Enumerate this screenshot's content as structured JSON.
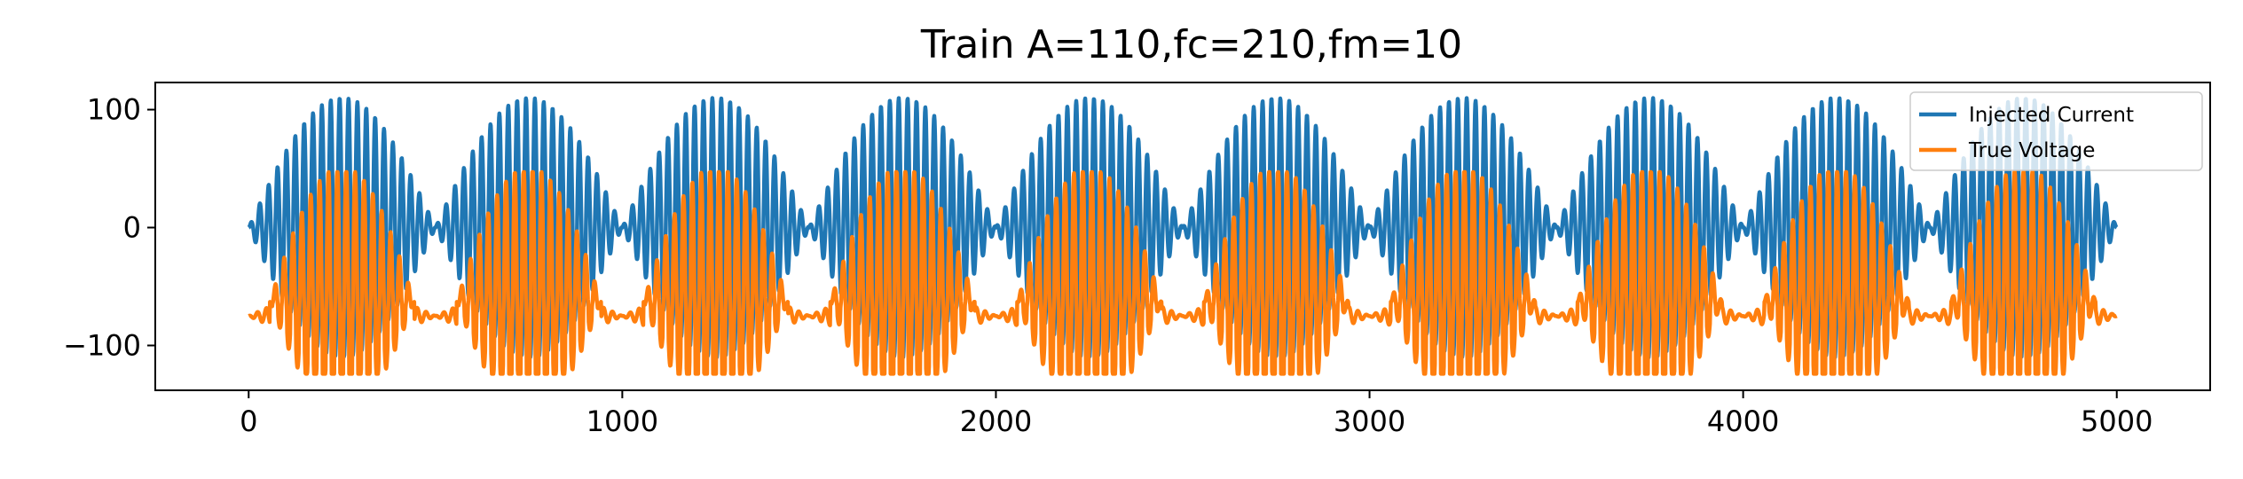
{
  "chart_data": {
    "type": "line",
    "title": "Train A=110,fc=210,fm=10",
    "xlabel": "",
    "ylabel": "",
    "xlim": [
      -250,
      5250
    ],
    "ylim": [
      -138,
      123
    ],
    "xticks": [
      0,
      1000,
      2000,
      3000,
      4000,
      5000
    ],
    "xtick_labels": [
      "0",
      "1000",
      "2000",
      "3000",
      "4000",
      "5000"
    ],
    "yticks": [
      -100,
      0,
      100
    ],
    "ytick_labels": [
      "−100",
      "0",
      "100"
    ],
    "grid": false,
    "legend_position": "upper right",
    "series": [
      {
        "name": "Injected Current",
        "color": "#1f77b4",
        "description": "Amplitude-modulated sinusoid, amplitude 110, carrier 210, modulation 10, over x = 0 to 5000",
        "x_start": 0,
        "x_end": 5000,
        "bursts": 10,
        "peak": 110,
        "min": -110
      },
      {
        "name": "True Voltage",
        "color": "#ff7f0e",
        "description": "Membrane voltage response: resting near -75, spiking train during each current burst",
        "x_start": 0,
        "x_end": 5000,
        "rest": -75,
        "peak": 47,
        "min": -124
      }
    ]
  }
}
